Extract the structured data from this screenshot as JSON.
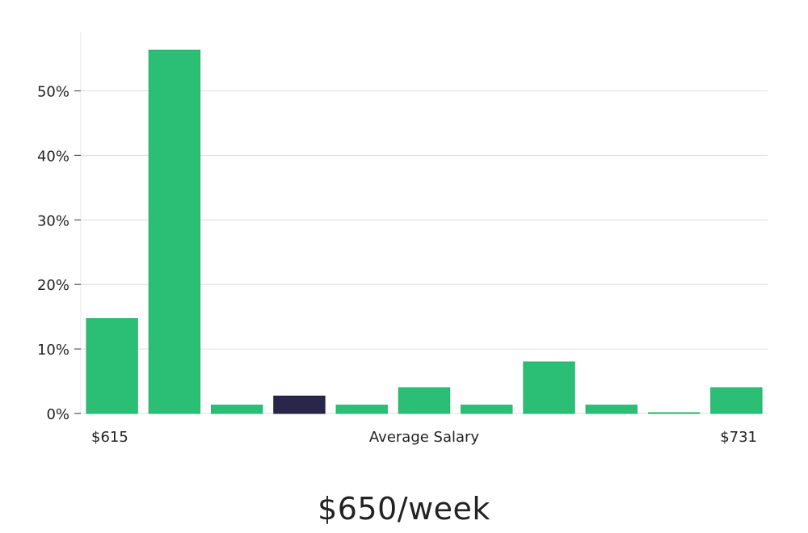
{
  "colors": {
    "bar": "#2bbf76",
    "highlight": "#29264a",
    "grid": "#dddddd",
    "axis": "#e5e5e5",
    "text": "#222222"
  },
  "salary_display": "$650/week",
  "chart_data": {
    "type": "bar",
    "title": "",
    "xlabel": "Average Salary",
    "ylabel": "",
    "x_min_label": "$615",
    "x_max_label": "$731",
    "ylim": [
      0,
      59
    ],
    "yticks": [
      0,
      10,
      20,
      30,
      40,
      50
    ],
    "ytick_labels": [
      "0%",
      "10%",
      "20%",
      "30%",
      "40%",
      "50%"
    ],
    "grid": true,
    "values": [
      14.7,
      56.3,
      1.3,
      2.7,
      1.3,
      4.0,
      1.3,
      8.0,
      1.3,
      0.1,
      4.0
    ],
    "highlight_index": 3
  }
}
